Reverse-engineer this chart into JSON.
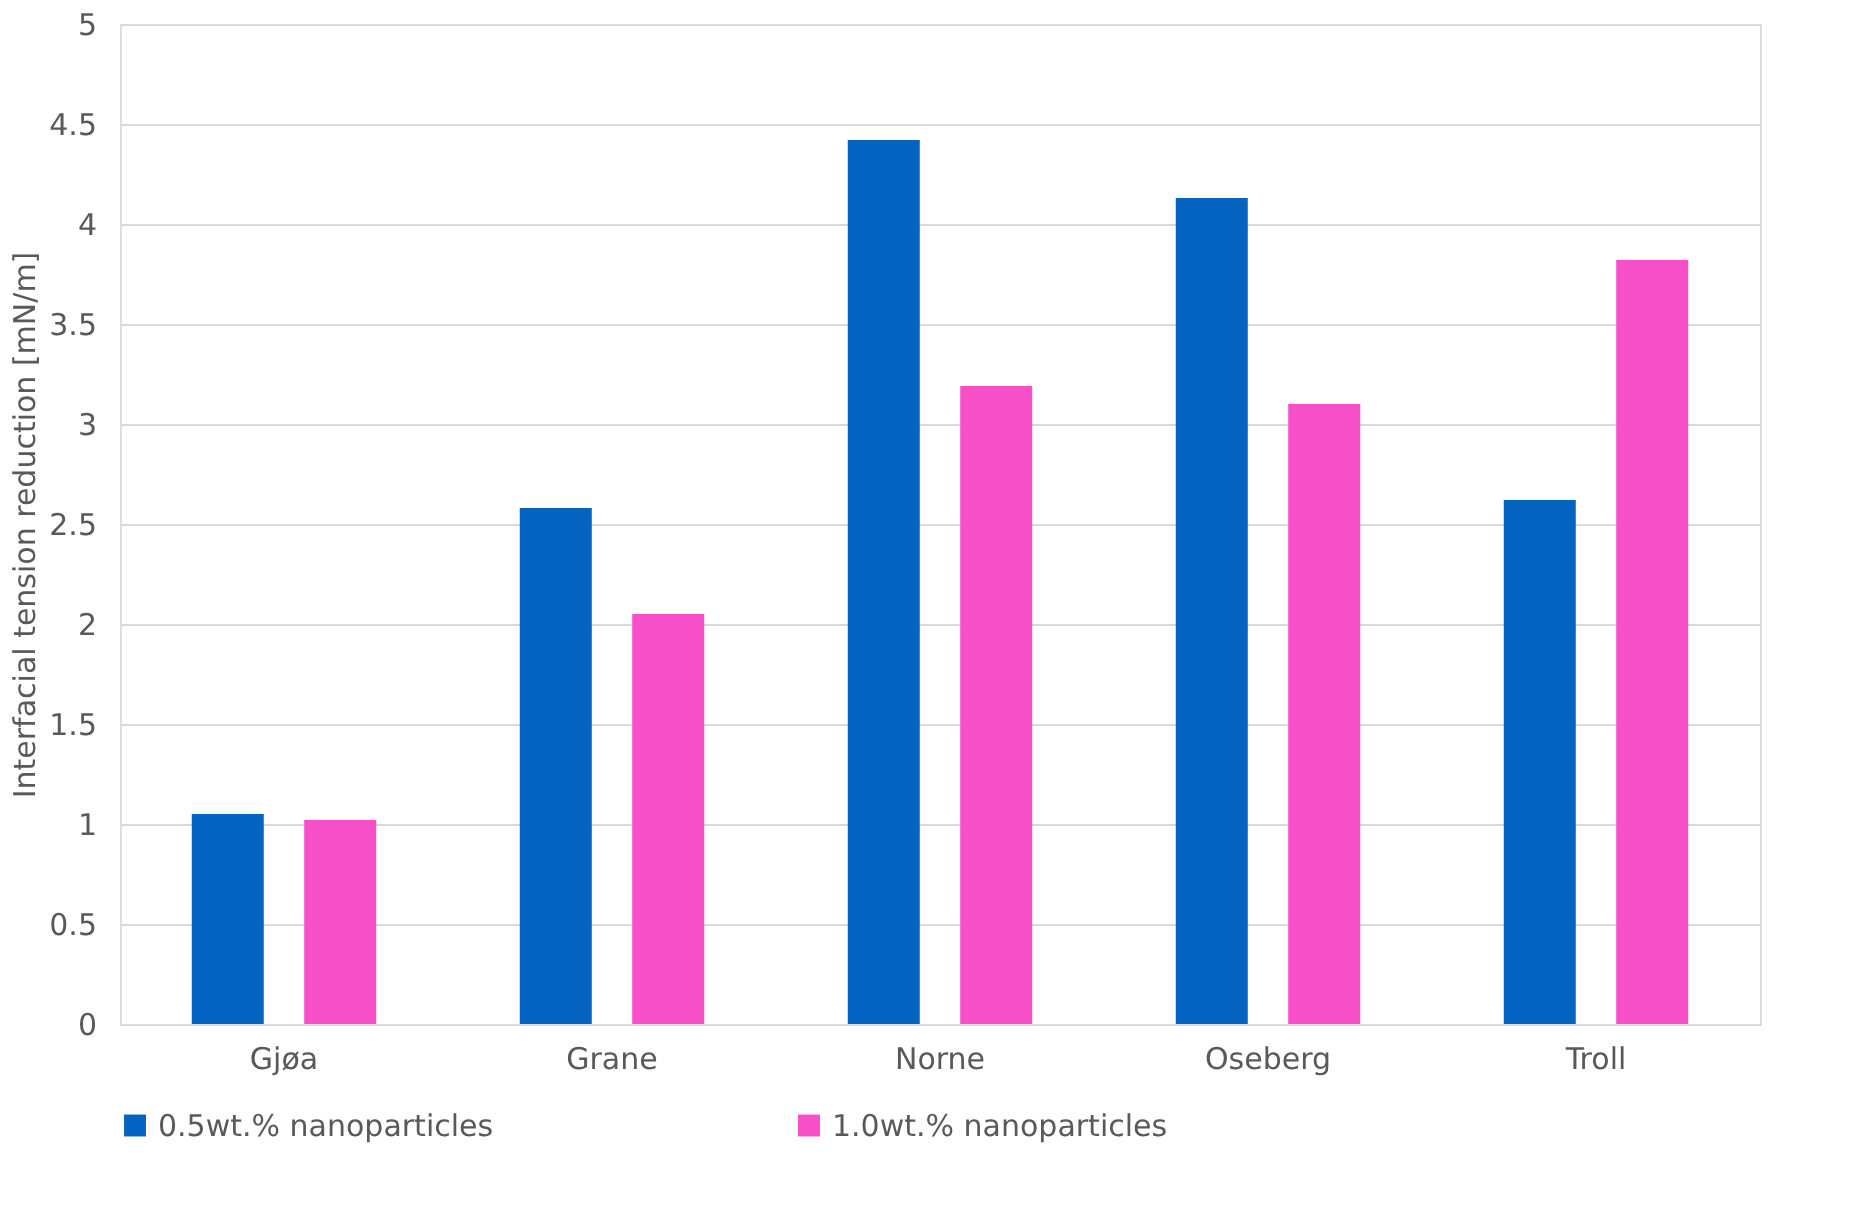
{
  "chart_data": {
    "type": "bar",
    "ylabel": "Interfacial tension reduction [mN/m]",
    "categories": [
      "Gjøa",
      "Grane",
      "Norne",
      "Oseberg",
      "Troll"
    ],
    "series": [
      {
        "name": "0.5wt.% nanoparticles",
        "color": "#0563c1",
        "values": [
          1.05,
          2.58,
          4.42,
          4.13,
          2.62
        ]
      },
      {
        "name": "1.0wt.% nanoparticles",
        "color": "#f74fc8",
        "values": [
          1.02,
          2.05,
          3.19,
          3.1,
          3.82
        ]
      }
    ],
    "ylim": [
      0,
      5
    ],
    "yticks": [
      0,
      0.5,
      1,
      1.5,
      2,
      2.5,
      3,
      3.5,
      4,
      4.5,
      5
    ],
    "grid": "y",
    "legend": "bottom"
  }
}
